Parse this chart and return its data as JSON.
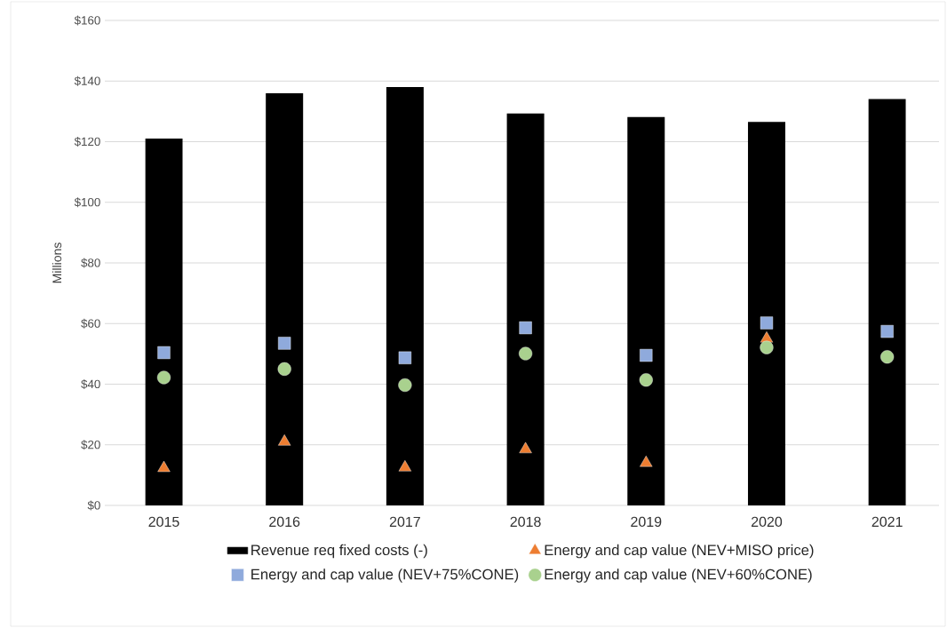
{
  "chart_data": {
    "type": "bar",
    "ylabel": "Millions",
    "categories": [
      "2015",
      "2016",
      "2017",
      "2018",
      "2019",
      "2020",
      "2021"
    ],
    "series": [
      {
        "name": "Revenue req fixed costs (-)",
        "color": "#000000",
        "values": [
          121,
          136,
          138,
          129.3,
          128.1,
          126.5,
          134.1
        ]
      },
      {
        "name": "Energy and cap value (NEV+MISO price)",
        "type": "scatter",
        "marker": "triangle",
        "color": "#ed7d31",
        "values": [
          12.3,
          21,
          12.5,
          18.5,
          14,
          55,
          null
        ]
      },
      {
        "name": "Energy and cap value (NEV+75%CONE)",
        "type": "scatter",
        "marker": "square",
        "color": "#8faadc",
        "values": [
          50.4,
          53.5,
          48.7,
          58.6,
          49.5,
          60.2,
          57.4
        ]
      },
      {
        "name": "Energy and cap value (NEV+60%CONE)",
        "type": "scatter",
        "marker": "circle",
        "color": "#a9d18e",
        "values": [
          42.2,
          45,
          39.7,
          50.1,
          41.4,
          52.1,
          49
        ]
      }
    ],
    "ylim": [
      0,
      160
    ],
    "yticks": [
      {
        "value": 0,
        "label": "$0"
      },
      {
        "value": 20,
        "label": "$20"
      },
      {
        "value": 40,
        "label": "$40"
      },
      {
        "value": 60,
        "label": "$60"
      },
      {
        "value": 80,
        "label": "$80"
      },
      {
        "value": 100,
        "label": "$100"
      },
      {
        "value": 120,
        "label": "$120"
      },
      {
        "value": 140,
        "label": "$140"
      },
      {
        "value": 160,
        "label": "$160"
      }
    ],
    "grid": "y",
    "legend": "bottom"
  }
}
